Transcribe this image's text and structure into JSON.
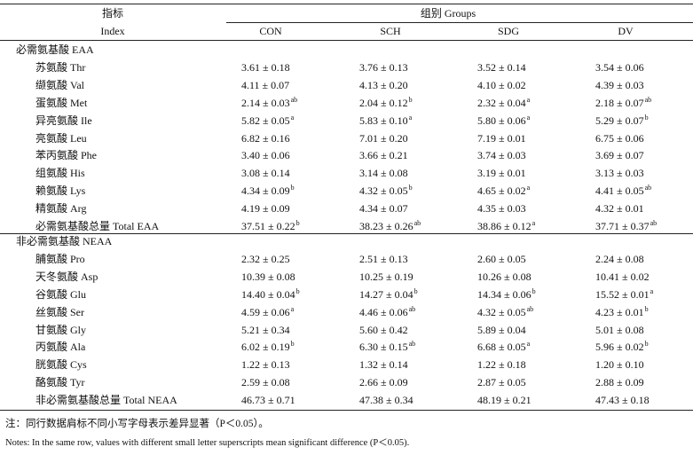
{
  "table": {
    "header": {
      "index_cn": "指标",
      "index_en": "Index",
      "groups": "组别 Groups",
      "columns": [
        "CON",
        "SCH",
        "SDG",
        "DV"
      ]
    },
    "sections": [
      {
        "title": "必需氨基酸 EAA",
        "rows": [
          {
            "label": "苏氨酸 Thr",
            "cells": [
              {
                "text": "3.61 ± 0.18"
              },
              {
                "text": "3.76 ± 0.13"
              },
              {
                "text": "3.52 ± 0.14"
              },
              {
                "text": "3.54 ± 0.06"
              }
            ]
          },
          {
            "label": "缬氨酸 Val",
            "cells": [
              {
                "text": "4.11 ± 0.07"
              },
              {
                "text": "4.13 ± 0.20"
              },
              {
                "text": "4.10 ± 0.02"
              },
              {
                "text": "4.39 ± 0.03"
              }
            ]
          },
          {
            "label": "蛋氨酸 Met",
            "cells": [
              {
                "text": "2.14 ± 0.03",
                "sup": "ab"
              },
              {
                "text": "2.04 ± 0.12",
                "sup": "b"
              },
              {
                "text": "2.32 ± 0.04",
                "sup": "a"
              },
              {
                "text": "2.18 ± 0.07",
                "sup": "ab"
              }
            ]
          },
          {
            "label": "异亮氨酸 Ile",
            "cells": [
              {
                "text": "5.82 ± 0.05",
                "sup": "a"
              },
              {
                "text": "5.83 ± 0.10",
                "sup": "a"
              },
              {
                "text": "5.80 ± 0.06",
                "sup": "a"
              },
              {
                "text": "5.29 ± 0.07",
                "sup": "b"
              }
            ]
          },
          {
            "label": "亮氨酸 Leu",
            "cells": [
              {
                "text": "6.82 ± 0.16"
              },
              {
                "text": "7.01 ± 0.20"
              },
              {
                "text": "7.19 ± 0.01"
              },
              {
                "text": "6.75 ± 0.06"
              }
            ]
          },
          {
            "label": "苯丙氨酸 Phe",
            "cells": [
              {
                "text": "3.40 ± 0.06"
              },
              {
                "text": "3.66 ± 0.21"
              },
              {
                "text": "3.74 ± 0.03"
              },
              {
                "text": "3.69 ± 0.07"
              }
            ]
          },
          {
            "label": "组氨酸 His",
            "cells": [
              {
                "text": "3.08 ± 0.14"
              },
              {
                "text": "3.14 ± 0.08"
              },
              {
                "text": "3.19 ± 0.01"
              },
              {
                "text": "3.13 ± 0.03"
              }
            ]
          },
          {
            "label": "赖氨酸 Lys",
            "cells": [
              {
                "text": "4.34 ± 0.09",
                "sup": "b"
              },
              {
                "text": "4.32 ± 0.05",
                "sup": "b"
              },
              {
                "text": "4.65 ± 0.02",
                "sup": "a"
              },
              {
                "text": "4.41 ± 0.05",
                "sup": "ab"
              }
            ]
          },
          {
            "label": "精氨酸 Arg",
            "cells": [
              {
                "text": "4.19 ± 0.09"
              },
              {
                "text": "4.34 ± 0.07"
              },
              {
                "text": "4.35 ± 0.03"
              },
              {
                "text": "4.32 ± 0.01"
              }
            ]
          },
          {
            "label": "必需氨基酸总量 Total EAA",
            "cells": [
              {
                "text": "37.51 ± 0.22",
                "sup": "b"
              },
              {
                "text": "38.23 ± 0.26",
                "sup": "ab"
              },
              {
                "text": "38.86 ± 0.12",
                "sup": "a"
              },
              {
                "text": "37.71 ± 0.37",
                "sup": "ab"
              }
            ]
          }
        ]
      },
      {
        "title": "非必需氨基酸 NEAA",
        "rows": [
          {
            "label": "脯氨酸 Pro",
            "cells": [
              {
                "text": "2.32 ± 0.25"
              },
              {
                "text": "2.51 ± 0.13"
              },
              {
                "text": "2.60 ± 0.05"
              },
              {
                "text": "2.24 ± 0.08"
              }
            ]
          },
          {
            "label": "天冬氨酸 Asp",
            "cells": [
              {
                "text": "10.39 ± 0.08"
              },
              {
                "text": "10.25 ± 0.19"
              },
              {
                "text": "10.26 ± 0.08"
              },
              {
                "text": "10.41 ± 0.02"
              }
            ]
          },
          {
            "label": "谷氨酸 Glu",
            "cells": [
              {
                "text": "14.40 ± 0.04",
                "sup": "b"
              },
              {
                "text": "14.27 ± 0.04",
                "sup": "b"
              },
              {
                "text": "14.34 ± 0.06",
                "sup": "b"
              },
              {
                "text": "15.52 ± 0.01",
                "sup": "a"
              }
            ]
          },
          {
            "label": "丝氨酸 Ser",
            "cells": [
              {
                "text": "4.59 ± 0.06",
                "sup": "a"
              },
              {
                "text": "4.46 ± 0.06",
                "sup": "ab"
              },
              {
                "text": "4.32 ± 0.05",
                "sup": "ab"
              },
              {
                "text": "4.23 ± 0.01",
                "sup": "b"
              }
            ]
          },
          {
            "label": "甘氨酸 Gly",
            "cells": [
              {
                "text": "5.21 ± 0.34"
              },
              {
                "text": "5.60 ± 0.42"
              },
              {
                "text": "5.89 ± 0.04"
              },
              {
                "text": "5.01 ± 0.08"
              }
            ]
          },
          {
            "label": "丙氨酸 Ala",
            "cells": [
              {
                "text": "6.02 ± 0.19",
                "sup": "b"
              },
              {
                "text": "6.30 ± 0.15",
                "sup": "ab"
              },
              {
                "text": "6.68 ± 0.05",
                "sup": "a"
              },
              {
                "text": "5.96 ± 0.02",
                "sup": "b"
              }
            ]
          },
          {
            "label": "胱氨酸 Cys",
            "cells": [
              {
                "text": "1.22 ± 0.13"
              },
              {
                "text": "1.32 ± 0.14"
              },
              {
                "text": "1.22 ± 0.18"
              },
              {
                "text": "1.20 ± 0.10"
              }
            ]
          },
          {
            "label": "酪氨酸 Tyr",
            "cells": [
              {
                "text": "2.59 ± 0.08"
              },
              {
                "text": "2.66 ± 0.09"
              },
              {
                "text": "2.87 ± 0.05"
              },
              {
                "text": "2.88 ± 0.09"
              }
            ]
          },
          {
            "label": "非必需氨基酸总量 Total NEAA",
            "cells": [
              {
                "text": "46.73 ± 0.71"
              },
              {
                "text": "47.38 ± 0.34"
              },
              {
                "text": "48.19 ± 0.21"
              },
              {
                "text": "47.43 ± 0.18"
              }
            ]
          }
        ]
      }
    ]
  },
  "notes": [
    "注：同行数据肩标不同小写字母表示差异显著（P＜0.05）。",
    "Notes: In the same row, values with different small letter superscripts mean significant difference (P＜0.05)."
  ]
}
